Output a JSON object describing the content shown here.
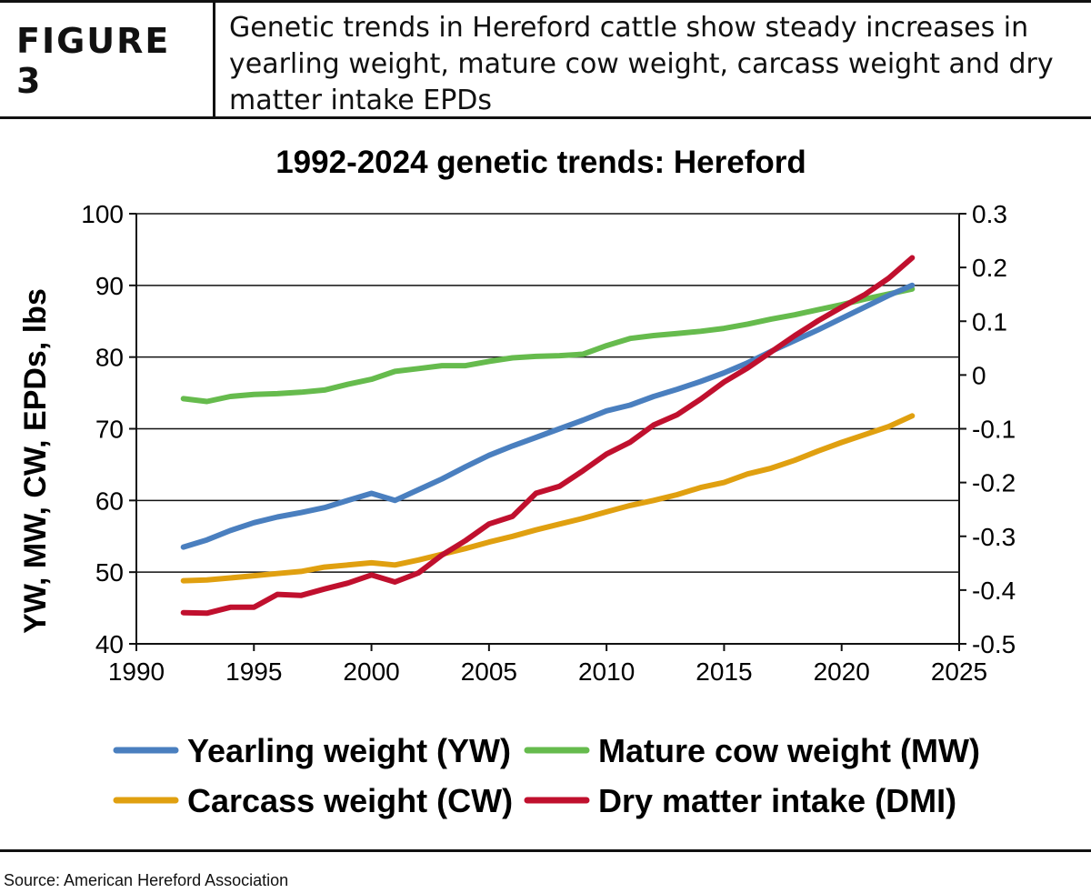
{
  "figure": {
    "label": "FIGURE 3",
    "caption": "Genetic trends in Hereford cattle show steady increases in yearling weight, mature cow weight, carcass weight and dry matter intake EPDs"
  },
  "source": "Source: American Hereford Association",
  "colors": {
    "yw": "#4a7fbf",
    "mw": "#66bb4d",
    "cw": "#e0a010",
    "dmi": "#c0102e"
  },
  "chart_data": {
    "type": "line",
    "title": "1992-2024 genetic trends: Hereford",
    "ylabel": "YW, MW, CW, EPDs, lbs",
    "y2label": "",
    "xlabel": "",
    "xlim": [
      1990,
      2025
    ],
    "ylim": [
      40,
      100
    ],
    "y2lim": [
      -0.5,
      0.3
    ],
    "xticks": [
      1990,
      1995,
      2000,
      2005,
      2010,
      2015,
      2020,
      2025
    ],
    "yticks": [
      40,
      50,
      60,
      70,
      80,
      90,
      100
    ],
    "y2ticks": [
      "-0.5",
      "-0.4",
      "-0.3",
      "-0.2",
      "-0.1",
      "0",
      "0.1",
      "0.2",
      "0.3"
    ],
    "grid": "horizontal",
    "legend_position": "bottom",
    "x": [
      1992,
      1993,
      1994,
      1995,
      1996,
      1997,
      1998,
      1999,
      2000,
      2001,
      2002,
      2003,
      2004,
      2005,
      2006,
      2007,
      2008,
      2009,
      2010,
      2011,
      2012,
      2013,
      2014,
      2015,
      2016,
      2017,
      2018,
      2019,
      2020,
      2021,
      2022,
      2023
    ],
    "series": [
      {
        "name": "Yearling weight (YW)",
        "key": "yw",
        "axis": "left",
        "values": [
          53.5,
          54.5,
          55.8,
          56.9,
          57.7,
          58.3,
          59.0,
          60.0,
          61.0,
          60.0,
          61.5,
          63.0,
          64.7,
          66.3,
          67.6,
          68.8,
          70.0,
          71.2,
          72.5,
          73.3,
          74.5,
          75.5,
          76.6,
          77.8,
          79.2,
          80.8,
          82.3,
          83.8,
          85.4,
          87.0,
          88.6,
          90.0
        ]
      },
      {
        "name": "Mature cow weight (MW)",
        "key": "mw",
        "axis": "left",
        "values": [
          74.2,
          73.8,
          74.5,
          74.8,
          74.9,
          75.1,
          75.4,
          76.2,
          76.9,
          78.0,
          78.4,
          78.8,
          78.8,
          79.4,
          79.9,
          80.1,
          80.2,
          80.4,
          81.6,
          82.6,
          83.0,
          83.3,
          83.6,
          84.0,
          84.6,
          85.3,
          85.9,
          86.6,
          87.3,
          88.1,
          88.8,
          89.5
        ]
      },
      {
        "name": "Carcass weight (CW)",
        "key": "cw",
        "axis": "left",
        "values": [
          48.8,
          48.9,
          49.2,
          49.5,
          49.8,
          50.1,
          50.7,
          51.0,
          51.3,
          51.0,
          51.7,
          52.5,
          53.3,
          54.2,
          55.0,
          55.9,
          56.7,
          57.5,
          58.4,
          59.3,
          60.0,
          60.8,
          61.8,
          62.5,
          63.7,
          64.5,
          65.6,
          66.9,
          68.1,
          69.2,
          70.3,
          71.8
        ]
      },
      {
        "name": "Dry matter intake (DMI)",
        "key": "dmi",
        "axis": "right",
        "values": [
          -0.442,
          -0.443,
          -0.432,
          -0.432,
          -0.408,
          -0.41,
          -0.398,
          -0.387,
          -0.372,
          -0.385,
          -0.368,
          -0.335,
          -0.308,
          -0.277,
          -0.263,
          -0.22,
          -0.207,
          -0.178,
          -0.147,
          -0.125,
          -0.093,
          -0.074,
          -0.045,
          -0.013,
          0.013,
          0.043,
          0.073,
          0.101,
          0.126,
          0.15,
          0.18,
          0.218
        ]
      }
    ]
  }
}
